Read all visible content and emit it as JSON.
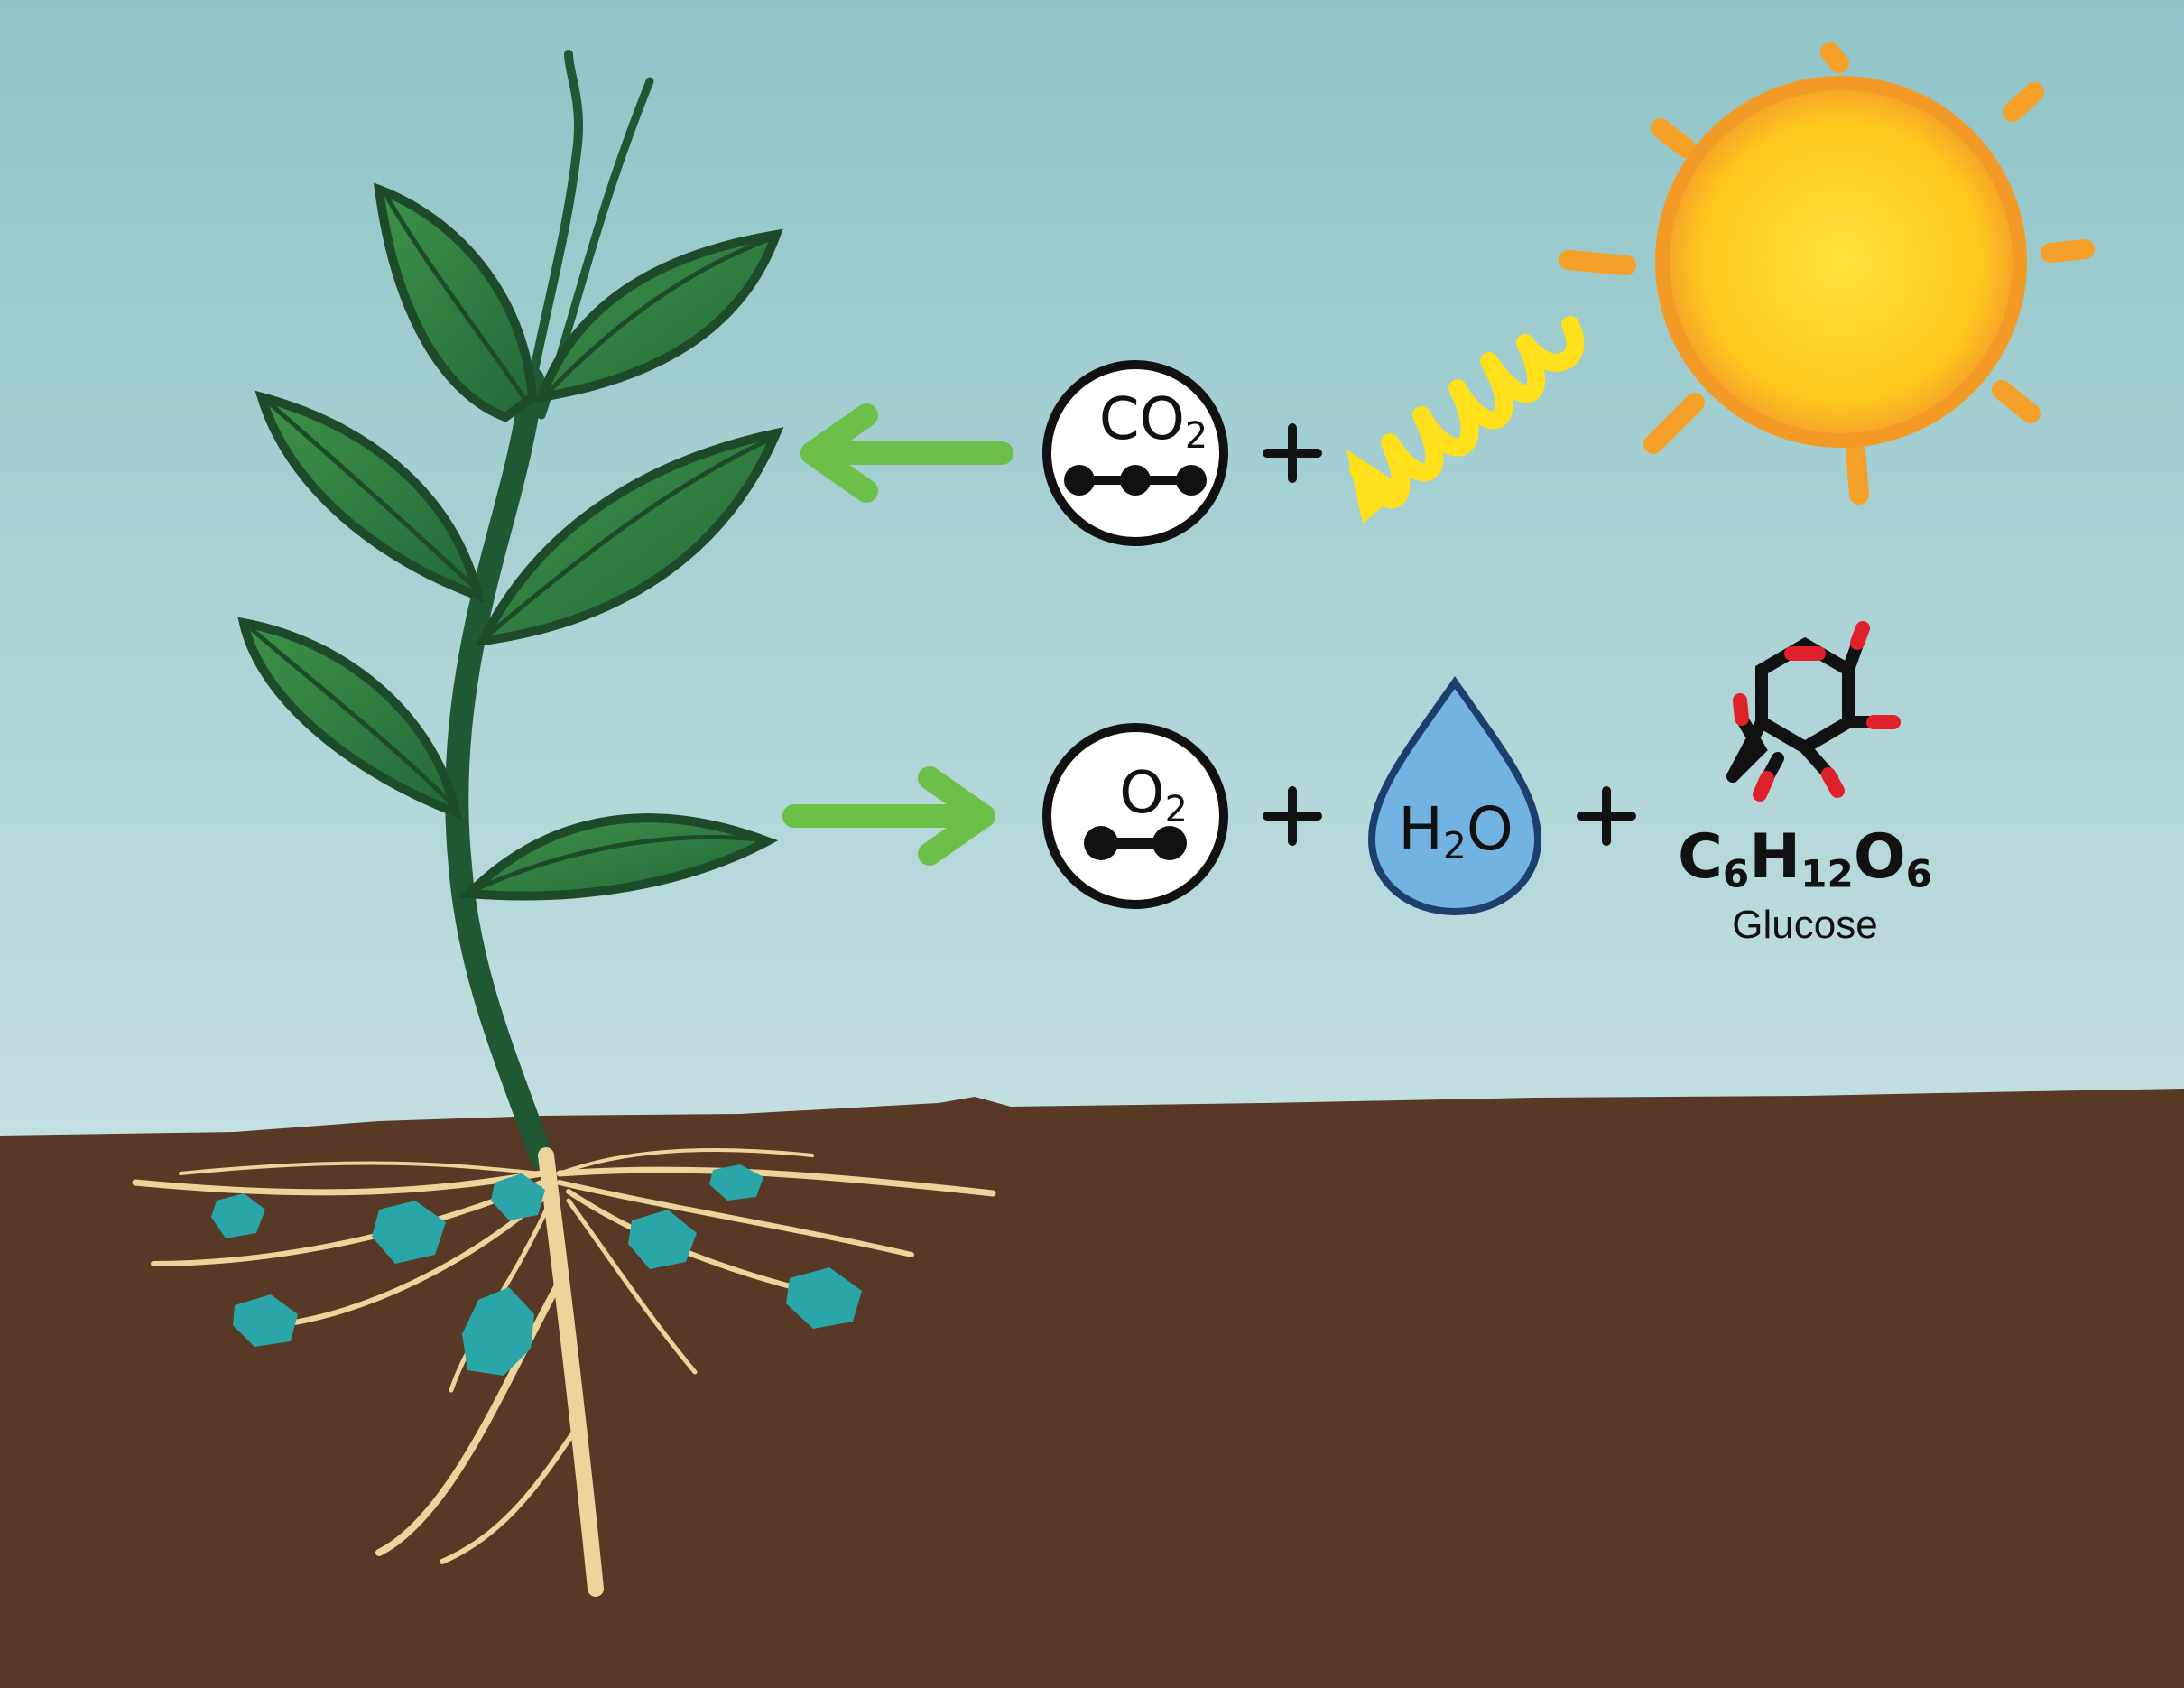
{
  "molecules": {
    "co2": {
      "base": "CO",
      "sub": "2"
    },
    "o2": {
      "base": "O",
      "sub": "2"
    },
    "h2o": {
      "pre": "H",
      "sub": "2",
      "post": "O"
    },
    "glucose": {
      "formula_c": "C",
      "c_sub": "6",
      "formula_h": "H",
      "h_sub": "12",
      "formula_o": "O",
      "o_sub": "6",
      "name": "Glucose"
    }
  },
  "operators": {
    "plus": "+"
  },
  "colors": {
    "sky_top": "#8fc4c7",
    "sky_bottom": "#dcecee",
    "soil": "#573925",
    "arrow": "#6cc04a",
    "sun_core": "#ffd21f",
    "sun_rim": "#f5a028",
    "sun_ray": "#f5a028",
    "light_wave": "#ffe01a",
    "leaf": "#2e7d3a",
    "leaf_edge": "#1d4a28",
    "stem": "#215834",
    "root": "#ecd49a",
    "water_particle": "#2aa5a8",
    "water_drop": "#72b3e2",
    "atom": "#111111",
    "bond_oxygen": "#e0202a"
  },
  "icons": [
    "sun-icon",
    "light-wave-icon",
    "plant-icon",
    "co2-molecule-icon",
    "o2-molecule-icon",
    "water-drop-icon",
    "glucose-ring-icon",
    "arrow-left-icon",
    "arrow-right-icon"
  ]
}
